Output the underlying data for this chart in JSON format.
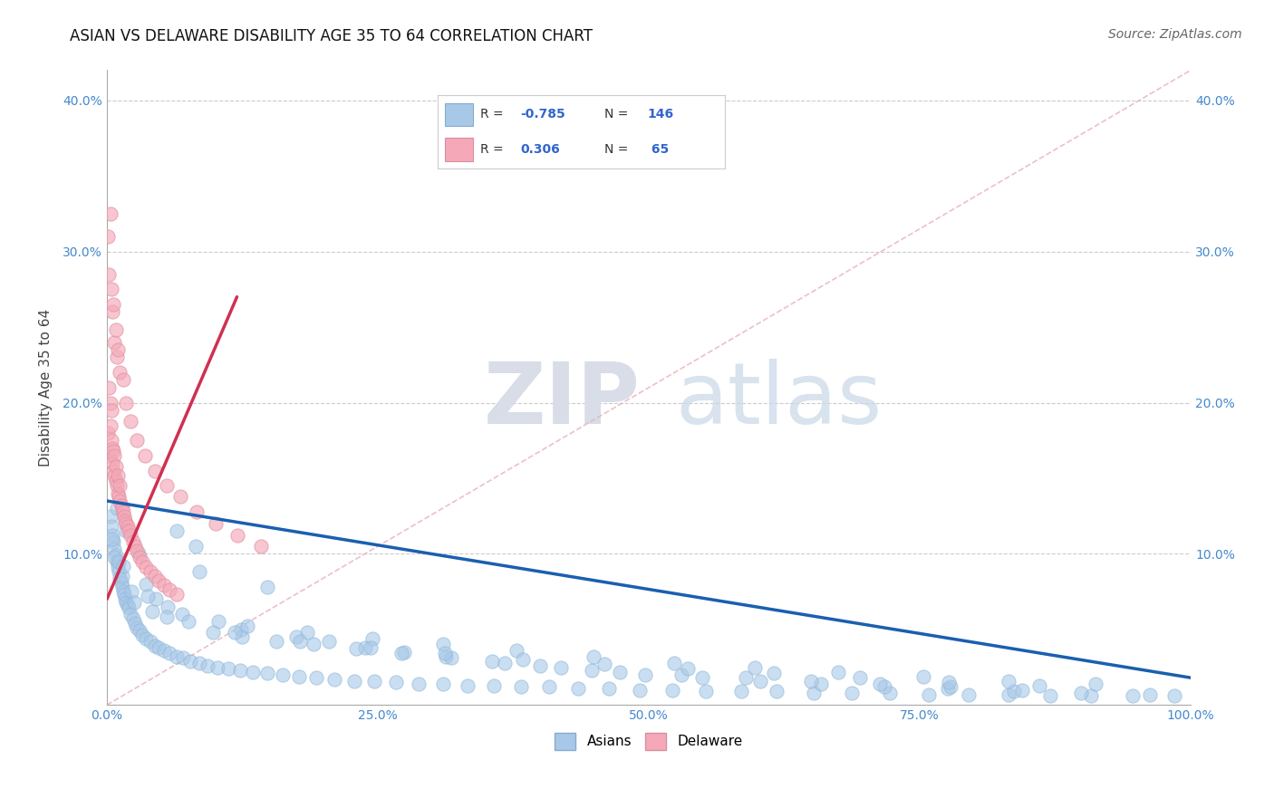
{
  "title": "ASIAN VS DELAWARE DISABILITY AGE 35 TO 64 CORRELATION CHART",
  "source": "Source: ZipAtlas.com",
  "ylabel": "Disability Age 35 to 64",
  "xlim": [
    0,
    1.0
  ],
  "ylim": [
    0,
    0.42
  ],
  "xticks": [
    0.0,
    0.25,
    0.5,
    0.75,
    1.0
  ],
  "xticklabels": [
    "0.0%",
    "25.0%",
    "50.0%",
    "75.0%",
    "100.0%"
  ],
  "yticks": [
    0.0,
    0.1,
    0.2,
    0.3,
    0.4
  ],
  "yticklabels_left": [
    "",
    "10.0%",
    "20.0%",
    "30.0%",
    "40.0%"
  ],
  "yticklabels_right": [
    "",
    "10.0%",
    "20.0%",
    "30.0%",
    "40.0%"
  ],
  "r_asian": -0.785,
  "n_asian": 146,
  "r_delaware": 0.306,
  "n_delaware": 65,
  "asian_color": "#a8c8e8",
  "delaware_color": "#f4a8b8",
  "asian_line_color": "#1a5fb0",
  "delaware_line_color": "#d03050",
  "ref_line_color": "#e8b0bc",
  "watermark_zip": "ZIP",
  "watermark_atlas": "atlas",
  "asian_scatter_x": [
    0.003,
    0.004,
    0.005,
    0.006,
    0.007,
    0.008,
    0.009,
    0.01,
    0.011,
    0.012,
    0.013,
    0.014,
    0.015,
    0.016,
    0.017,
    0.018,
    0.019,
    0.02,
    0.022,
    0.024,
    0.026,
    0.028,
    0.03,
    0.033,
    0.036,
    0.04,
    0.044,
    0.048,
    0.053,
    0.058,
    0.064,
    0.07,
    0.077,
    0.085,
    0.093,
    0.102,
    0.112,
    0.123,
    0.135,
    0.148,
    0.162,
    0.177,
    0.193,
    0.21,
    0.228,
    0.247,
    0.267,
    0.288,
    0.31,
    0.333,
    0.357,
    0.382,
    0.408,
    0.435,
    0.463,
    0.492,
    0.522,
    0.553,
    0.585,
    0.618,
    0.652,
    0.687,
    0.722,
    0.758,
    0.795,
    0.832,
    0.87,
    0.908,
    0.946,
    0.985,
    0.005,
    0.007,
    0.009,
    0.011,
    0.014,
    0.018,
    0.023,
    0.029,
    0.036,
    0.045,
    0.056,
    0.069,
    0.085,
    0.103,
    0.124,
    0.148,
    0.175,
    0.205,
    0.238,
    0.274,
    0.313,
    0.355,
    0.4,
    0.447,
    0.497,
    0.549,
    0.603,
    0.659,
    0.717,
    0.776,
    0.837,
    0.899,
    0.962,
    0.015,
    0.025,
    0.038,
    0.055,
    0.075,
    0.098,
    0.125,
    0.156,
    0.191,
    0.23,
    0.272,
    0.318,
    0.367,
    0.419,
    0.473,
    0.53,
    0.589,
    0.65,
    0.713,
    0.778,
    0.844,
    0.042,
    0.082,
    0.13,
    0.185,
    0.245,
    0.31,
    0.378,
    0.449,
    0.523,
    0.598,
    0.675,
    0.753,
    0.832,
    0.912,
    0.064,
    0.118,
    0.178,
    0.243,
    0.312,
    0.384,
    0.459,
    0.536,
    0.615,
    0.695,
    0.777,
    0.86
  ],
  "asian_scatter_y": [
    0.125,
    0.118,
    0.112,
    0.108,
    0.103,
    0.099,
    0.095,
    0.091,
    0.088,
    0.084,
    0.081,
    0.078,
    0.075,
    0.073,
    0.07,
    0.068,
    0.066,
    0.064,
    0.06,
    0.057,
    0.054,
    0.051,
    0.049,
    0.046,
    0.044,
    0.042,
    0.039,
    0.038,
    0.036,
    0.034,
    0.032,
    0.031,
    0.029,
    0.028,
    0.026,
    0.025,
    0.024,
    0.023,
    0.022,
    0.021,
    0.02,
    0.019,
    0.018,
    0.017,
    0.016,
    0.016,
    0.015,
    0.014,
    0.014,
    0.013,
    0.013,
    0.012,
    0.012,
    0.011,
    0.011,
    0.01,
    0.01,
    0.009,
    0.009,
    0.009,
    0.008,
    0.008,
    0.008,
    0.007,
    0.007,
    0.007,
    0.006,
    0.006,
    0.006,
    0.006,
    0.11,
    0.098,
    0.13,
    0.095,
    0.085,
    0.115,
    0.075,
    0.1,
    0.08,
    0.07,
    0.065,
    0.06,
    0.088,
    0.055,
    0.05,
    0.078,
    0.045,
    0.042,
    0.038,
    0.035,
    0.032,
    0.029,
    0.026,
    0.023,
    0.02,
    0.018,
    0.016,
    0.014,
    0.012,
    0.011,
    0.009,
    0.008,
    0.007,
    0.092,
    0.068,
    0.072,
    0.058,
    0.055,
    0.048,
    0.045,
    0.042,
    0.04,
    0.037,
    0.034,
    0.031,
    0.028,
    0.025,
    0.022,
    0.02,
    0.018,
    0.016,
    0.014,
    0.012,
    0.01,
    0.062,
    0.105,
    0.052,
    0.048,
    0.044,
    0.04,
    0.036,
    0.032,
    0.028,
    0.025,
    0.022,
    0.019,
    0.016,
    0.014,
    0.115,
    0.048,
    0.042,
    0.038,
    0.034,
    0.03,
    0.027,
    0.024,
    0.021,
    0.018,
    0.015,
    0.013
  ],
  "delaware_scatter_x": [
    0.001,
    0.002,
    0.002,
    0.003,
    0.003,
    0.004,
    0.004,
    0.005,
    0.005,
    0.006,
    0.006,
    0.007,
    0.007,
    0.008,
    0.008,
    0.009,
    0.01,
    0.01,
    0.011,
    0.012,
    0.012,
    0.013,
    0.014,
    0.015,
    0.016,
    0.017,
    0.018,
    0.019,
    0.02,
    0.022,
    0.024,
    0.026,
    0.028,
    0.03,
    0.033,
    0.036,
    0.04,
    0.044,
    0.048,
    0.053,
    0.058,
    0.064,
    0.001,
    0.002,
    0.003,
    0.004,
    0.005,
    0.006,
    0.007,
    0.008,
    0.009,
    0.01,
    0.012,
    0.015,
    0.018,
    0.022,
    0.028,
    0.035,
    0.044,
    0.055,
    0.068,
    0.083,
    0.1,
    0.12,
    0.142
  ],
  "delaware_scatter_y": [
    0.18,
    0.21,
    0.165,
    0.2,
    0.185,
    0.175,
    0.195,
    0.16,
    0.17,
    0.155,
    0.168,
    0.152,
    0.165,
    0.148,
    0.158,
    0.145,
    0.14,
    0.152,
    0.138,
    0.135,
    0.145,
    0.132,
    0.13,
    0.128,
    0.125,
    0.122,
    0.12,
    0.118,
    0.115,
    0.112,
    0.108,
    0.105,
    0.102,
    0.098,
    0.095,
    0.091,
    0.088,
    0.085,
    0.082,
    0.079,
    0.076,
    0.073,
    0.31,
    0.285,
    0.325,
    0.275,
    0.26,
    0.265,
    0.24,
    0.248,
    0.23,
    0.235,
    0.22,
    0.215,
    0.2,
    0.188,
    0.175,
    0.165,
    0.155,
    0.145,
    0.138,
    0.128,
    0.12,
    0.112,
    0.105
  ],
  "asian_line_x0": 0.0,
  "asian_line_y0": 0.135,
  "asian_line_x1": 1.0,
  "asian_line_y1": 0.018,
  "delaware_line_x0": 0.0,
  "delaware_line_y0": 0.07,
  "delaware_line_x1": 0.12,
  "delaware_line_y1": 0.27,
  "ref_line_x0": 0.0,
  "ref_line_y0": 0.0,
  "ref_line_x1": 1.0,
  "ref_line_y1": 0.42
}
